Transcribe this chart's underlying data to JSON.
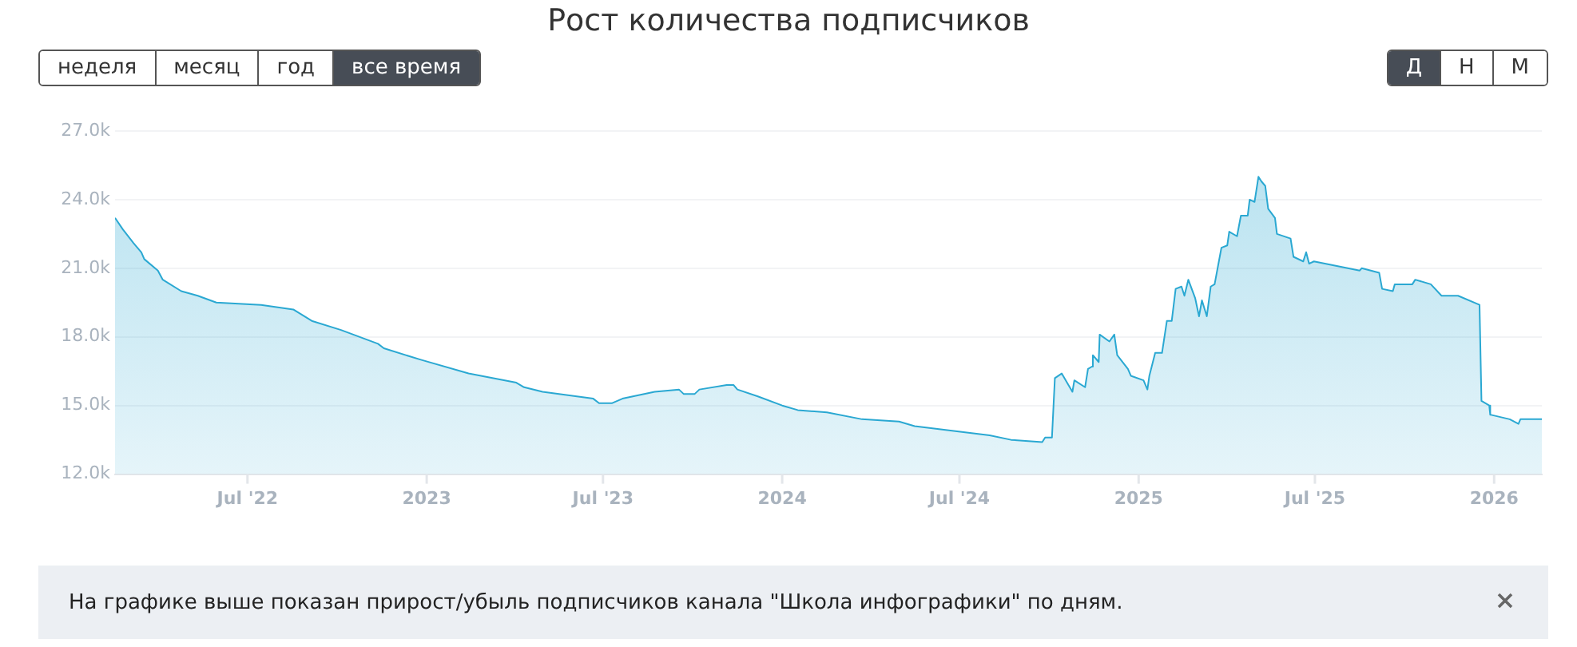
{
  "chart_data": {
    "type": "area",
    "title": "Рост количества подписчиков",
    "x": [
      "2022-02-15",
      "2022-02-23",
      "2022-03-06",
      "2022-03-14",
      "2022-03-17",
      "2022-03-31",
      "2022-04-05",
      "2022-04-24",
      "2022-05-11",
      "2022-05-30",
      "2022-07-15",
      "2022-08-17",
      "2022-09-05",
      "2022-10-05",
      "2022-11-12",
      "2022-11-18",
      "2022-12-26",
      "2023-02-13",
      "2023-04-03",
      "2023-04-11",
      "2023-04-30",
      "2023-06-21",
      "2023-06-27",
      "2023-07-10",
      "2023-07-21",
      "2023-08-23",
      "2023-09-17",
      "2023-09-22",
      "2023-10-03",
      "2023-10-08",
      "2023-11-05",
      "2023-11-12",
      "2023-11-16",
      "2023-12-07",
      "2024-01-01",
      "2024-01-17",
      "2024-02-16",
      "2024-03-23",
      "2024-04-30",
      "2024-05-16",
      "2024-08-01",
      "2024-08-23",
      "2024-09-24",
      "2024-09-27",
      "2024-10-04",
      "2024-10-07",
      "2024-10-14",
      "2024-10-25",
      "2024-10-27",
      "2024-11-07",
      "2024-11-10",
      "2024-11-14",
      "2024-11-15",
      "2024-11-21",
      "2024-11-22",
      "2024-12-02",
      "2024-12-07",
      "2024-12-10",
      "2024-12-21",
      "2024-12-24",
      "2025-01-06",
      "2025-01-10",
      "2025-01-12",
      "2025-01-18",
      "2025-01-25",
      "2025-01-30",
      "2025-02-04",
      "2025-02-08",
      "2025-02-14",
      "2025-02-17",
      "2025-02-21",
      "2025-02-28",
      "2025-03-04",
      "2025-03-07",
      "2025-03-12",
      "2025-03-16",
      "2025-03-20",
      "2025-03-27",
      "2025-04-02",
      "2025-04-04",
      "2025-04-12",
      "2025-04-16",
      "2025-04-23",
      "2025-04-25",
      "2025-04-30",
      "2025-05-04",
      "2025-05-07",
      "2025-05-11",
      "2025-05-14",
      "2025-05-21",
      "2025-05-23",
      "2025-06-06",
      "2025-06-09",
      "2025-06-19",
      "2025-06-22",
      "2025-06-25",
      "2025-06-30",
      "2025-08-16",
      "2025-08-18",
      "2025-09-05",
      "2025-09-08",
      "2025-09-19",
      "2025-09-21",
      "2025-10-09",
      "2025-10-12",
      "2025-10-28",
      "2025-11-08",
      "2025-11-25",
      "2025-12-17",
      "2025-12-19",
      "2025-12-27",
      "2025-12-28",
      "2026-01-17",
      "2026-01-26",
      "2026-01-28",
      "2026-02-19"
    ],
    "values": [
      23200,
      22700,
      22100,
      21700,
      21400,
      20900,
      20500,
      20000,
      19800,
      19500,
      19400,
      19200,
      18700,
      18300,
      17700,
      17500,
      17000,
      16400,
      16000,
      15800,
      15600,
      15300,
      15100,
      15100,
      15300,
      15600,
      15700,
      15500,
      15500,
      15700,
      15900,
      15900,
      15700,
      15400,
      15000,
      14800,
      14700,
      14400,
      14300,
      14100,
      13700,
      13500,
      13400,
      13600,
      13600,
      16200,
      16400,
      15600,
      16100,
      15800,
      16600,
      16700,
      17200,
      16900,
      18100,
      17800,
      18100,
      17200,
      16600,
      16300,
      16100,
      15700,
      16300,
      17300,
      17300,
      18700,
      18700,
      20100,
      20200,
      19800,
      20500,
      19700,
      18900,
      19600,
      18900,
      20200,
      20300,
      21900,
      22000,
      22600,
      22400,
      23300,
      23300,
      24000,
      23900,
      25000,
      24800,
      24600,
      23600,
      23200,
      22500,
      22300,
      21500,
      21300,
      21700,
      21200,
      21300,
      20900,
      21000,
      20800,
      20100,
      20000,
      20300,
      20300,
      20500,
      20300,
      19800,
      19800,
      19400,
      15200,
      15000,
      14600,
      14400,
      14200,
      14400,
      14400
    ],
    "color": "#2aa8d2",
    "xlim": [
      "2022-02-15",
      "2026-02-19"
    ],
    "xticks": [
      {
        "value": "2022-07-01",
        "label": "Jul '22"
      },
      {
        "value": "2023-01-01",
        "label": "2023"
      },
      {
        "value": "2023-07-01",
        "label": "Jul '23"
      },
      {
        "value": "2024-01-01",
        "label": "2024"
      },
      {
        "value": "2024-07-01",
        "label": "Jul '24"
      },
      {
        "value": "2025-01-01",
        "label": "2025"
      },
      {
        "value": "2025-07-01",
        "label": "Jul '25"
      },
      {
        "value": "2026-01-01",
        "label": "2026"
      }
    ],
    "ylim": [
      12000,
      27000
    ],
    "yticks": [
      {
        "value": 12000,
        "label": "12.0k"
      },
      {
        "value": 15000,
        "label": "15.0k"
      },
      {
        "value": 18000,
        "label": "18.0k"
      },
      {
        "value": 21000,
        "label": "21.0k"
      },
      {
        "value": 24000,
        "label": "24.0k"
      },
      {
        "value": 27000,
        "label": "27.0k"
      }
    ],
    "grid": "y",
    "legend": false,
    "marker": "none",
    "annotations": [
      "неделя",
      "месяц",
      "год",
      "все время",
      "Д",
      "Н",
      "М",
      "На графике выше показан прирост/убыль подписчиков канала \"Школа инфографики\" по дням."
    ]
  }
}
